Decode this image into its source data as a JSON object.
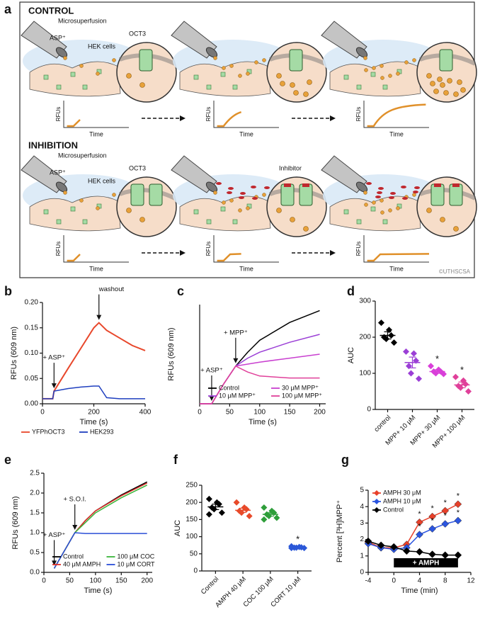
{
  "diagram": {
    "label": "a",
    "sections": [
      {
        "title": "CONTROL",
        "pipette": "Microsuperfusion",
        "solute": "ASP⁺",
        "cells": "HEK cells",
        "transporter": "OCT3",
        "plots": [
          {
            "ylabel": "RFUs",
            "xlabel": "Time"
          },
          {
            "ylabel": "RFUs",
            "xlabel": "Time"
          },
          {
            "ylabel": "RFUs",
            "xlabel": "Time"
          }
        ]
      },
      {
        "title": "INHIBITION",
        "pipette": "Microsuperfusion",
        "solute": "ASP⁺",
        "cells": "HEK cells",
        "transporter": "OCT3",
        "inhibitor": "Inhibitor",
        "plots": [
          {
            "ylabel": "RFUs",
            "xlabel": "Time"
          },
          {
            "ylabel": "RFUs",
            "xlabel": "Time"
          },
          {
            "ylabel": "RFUs",
            "xlabel": "Time"
          }
        ]
      }
    ],
    "credit": "©UTHSCSA"
  },
  "chart_data": [
    {
      "type": "line",
      "label": "b",
      "xlabel": "Time (s)",
      "ylabel": "RFUs (609 nm)",
      "x": [
        0,
        40,
        45,
        100,
        150,
        200,
        220,
        250,
        300,
        350,
        400
      ],
      "series": [
        {
          "name": "YFPhOCT3",
          "color": "#e8472b",
          "values": [
            0.01,
            0.01,
            0.025,
            0.07,
            0.11,
            0.15,
            0.16,
            0.145,
            0.13,
            0.115,
            0.105
          ]
        },
        {
          "name": "HEK293",
          "color": "#1f3fbf",
          "values": [
            0.01,
            0.01,
            0.025,
            0.03,
            0.033,
            0.035,
            0.035,
            0.012,
            0.01,
            0.01,
            0.01
          ]
        }
      ],
      "xlim": [
        0,
        400
      ],
      "xticks": [
        0,
        200,
        400
      ],
      "ylim": [
        0,
        0.2
      ],
      "yticks": [
        {
          "value": 0,
          "label": "0.00"
        },
        0.05,
        {
          "value": 0.1,
          "label": "0.10"
        },
        0.15,
        {
          "value": 0.2,
          "label": "0.20"
        }
      ],
      "annotations": [
        {
          "text": "+ ASP⁺",
          "x": 45
        },
        {
          "text": "washout",
          "x": 220
        }
      ],
      "legend": "below"
    },
    {
      "type": "line",
      "label": "c",
      "xlabel": "Time (s)",
      "ylabel": "RFUs (609 nm)",
      "x": [
        0,
        20,
        40,
        60,
        80,
        100,
        150,
        200
      ],
      "series": [
        {
          "name": "Control",
          "color": "#000000",
          "values": [
            0,
            0,
            0.5,
            0.95,
            1.3,
            1.6,
            2.05,
            2.35
          ]
        },
        {
          "name": "10 μM MPP⁺",
          "color": "#9b3fd6",
          "values": [
            0,
            0,
            0.5,
            0.95,
            1.15,
            1.3,
            1.55,
            1.75
          ]
        },
        {
          "name": "30 μM MPP⁺",
          "color": "#c940d0",
          "values": [
            0,
            0,
            0.5,
            0.95,
            1.0,
            1.05,
            1.15,
            1.25
          ]
        },
        {
          "name": "100 μM MPP⁺",
          "color": "#e0409a",
          "values": [
            0,
            0,
            0.5,
            0.95,
            0.8,
            0.7,
            0.65,
            0.65
          ]
        }
      ],
      "xlim": [
        0,
        210
      ],
      "xticks": [
        0,
        50,
        100,
        150,
        200
      ],
      "ylim": [
        0,
        2.5
      ],
      "annotations": [
        {
          "text": "+ ASP⁺",
          "x": 20
        },
        {
          "text": "+ MPP⁺",
          "x": 60
        }
      ],
      "legend": "lower right"
    },
    {
      "type": "dot",
      "label": "d",
      "ylabel": "AUC",
      "categories": [
        "control",
        "MPP+ 10 μM",
        "MPP+ 30 μM",
        "MPP+ 100 μM"
      ],
      "points": [
        [
          240,
          220,
          205,
          200,
          195,
          185
        ],
        [
          160,
          155,
          135,
          120,
          100,
          85
        ],
        [
          120,
          110,
          105,
          105,
          100,
          98
        ],
        [
          90,
          80,
          70,
          65,
          60,
          50
        ]
      ],
      "means": [
        205,
        130,
        105,
        68
      ],
      "sems": [
        10,
        15,
        5,
        8
      ],
      "colors": [
        "#000000",
        "#9b3fd6",
        "#d93fd9",
        "#e0409a"
      ],
      "significance": [
        null,
        null,
        "*",
        "*"
      ],
      "ylim": [
        0,
        300
      ],
      "yticks": [
        0,
        100,
        200,
        300
      ]
    },
    {
      "type": "line",
      "label": "e",
      "xlabel": "Time (s)",
      "ylabel": "RFUs (609 nm)",
      "x": [
        20,
        40,
        60,
        80,
        100,
        150,
        200
      ],
      "series": [
        {
          "name": "Control",
          "color": "#000000",
          "values": [
            0.1,
            0.55,
            1.0,
            1.3,
            1.55,
            1.95,
            2.28
          ]
        },
        {
          "name": "40 μM AMPH",
          "color": "#e0302a",
          "values": [
            0.1,
            0.55,
            1.0,
            1.3,
            1.55,
            1.93,
            2.25
          ]
        },
        {
          "name": "100 μM COC",
          "color": "#3bb53b",
          "values": [
            0.1,
            0.55,
            1.0,
            1.25,
            1.5,
            1.88,
            2.2
          ]
        },
        {
          "name": "10 μM CORT",
          "color": "#2b4fd8",
          "values": [
            0.1,
            0.55,
            1.0,
            0.98,
            0.98,
            0.98,
            0.98
          ]
        }
      ],
      "xlim": [
        0,
        210
      ],
      "xticks": [
        0,
        50,
        100,
        150,
        200
      ],
      "ylim": [
        0,
        2.5
      ],
      "yticks": [
        {
          "value": 0,
          "label": "0.0"
        },
        0.5,
        {
          "value": 1,
          "label": "1.0"
        },
        1.5,
        {
          "value": 2,
          "label": "2.0"
        },
        2.5
      ],
      "annotations": [
        {
          "text": "+ ASP⁺",
          "x": 20
        },
        {
          "text": "+ S.O.I.",
          "x": 60
        }
      ],
      "legend": "lower right"
    },
    {
      "type": "dot",
      "label": "f",
      "ylabel": "AUC",
      "categories": [
        "Control",
        "AMPH 40 μM",
        "COC 100 μM",
        "CORT 10 μM"
      ],
      "points": [
        [
          210,
          200,
          195,
          185,
          180,
          170,
          165
        ],
        [
          200,
          185,
          180,
          175,
          170,
          160
        ],
        [
          185,
          175,
          170,
          165,
          160,
          155,
          150
        ],
        [
          72,
          70,
          69,
          68,
          68,
          67,
          67
        ]
      ],
      "means": [
        187,
        177,
        165,
        69
      ],
      "sems": [
        8,
        6,
        5,
        1
      ],
      "colors": [
        "#000000",
        "#e84a2a",
        "#2e9e3a",
        "#2b58d8"
      ],
      "significance": [
        null,
        null,
        null,
        "*"
      ],
      "ylim": [
        0,
        250
      ],
      "yticks": [
        0,
        50,
        100,
        150,
        200,
        250
      ]
    },
    {
      "type": "line",
      "label": "g",
      "xlabel": "Time (min)",
      "ylabel": "Percent [³H]MPP⁺",
      "markers": true,
      "x": [
        -4,
        -2,
        0,
        2,
        4,
        6,
        8,
        10
      ],
      "series": [
        {
          "name": "AMPH 30 μM",
          "color": "#e8402a",
          "values": [
            1.85,
            1.5,
            1.5,
            1.7,
            3.05,
            3.4,
            3.75,
            4.15
          ],
          "significance": [
            null,
            null,
            null,
            null,
            "*",
            "*",
            "*",
            "*"
          ]
        },
        {
          "name": "AMPH 10 μM",
          "color": "#2b55e0",
          "values": [
            1.75,
            1.5,
            1.4,
            1.5,
            2.3,
            2.65,
            2.95,
            3.15
          ],
          "significance": [
            null,
            null,
            null,
            null,
            "*",
            "*",
            "*",
            "*"
          ]
        },
        {
          "name": "Control",
          "color": "#000000",
          "values": [
            1.9,
            1.65,
            1.55,
            1.3,
            1.25,
            1.1,
            1.05,
            1.05
          ]
        }
      ],
      "xlim": [
        -4,
        12
      ],
      "xticks": [
        -4,
        0,
        4,
        8,
        12
      ],
      "ylim": [
        0,
        5
      ],
      "yticks": [
        0,
        1,
        2,
        3,
        4,
        5
      ],
      "period": {
        "text": "+ AMPH",
        "start": 0,
        "end": 10
      },
      "legend": "upper left"
    }
  ]
}
